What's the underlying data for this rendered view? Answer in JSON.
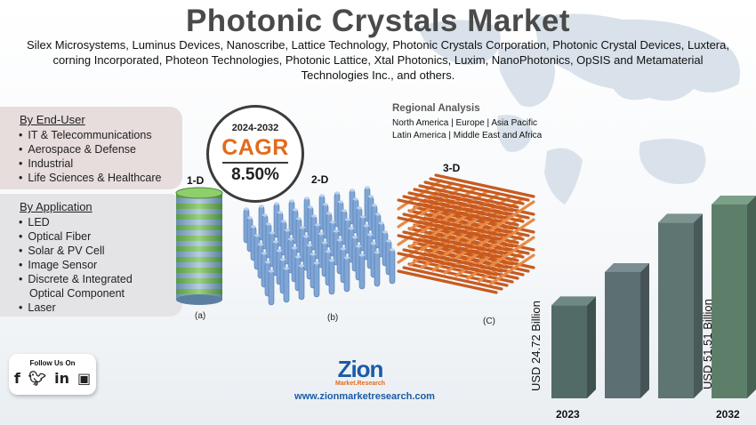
{
  "title": "Photonic Crystals Market",
  "companies": "Silex Microsystems, Luminus Devices, Nanoscribe, Lattice Technology, Photonic Crystals Corporation, Photonic Crystal Devices, Luxtera, corning Incorporated, Photeon Technologies, Photonic Lattice, Xtal Photonics, Luxim, NanoPhotonics, OpSIS and Metamaterial Technologies Inc., and others.",
  "end_user": {
    "heading": "By End-User",
    "items": [
      "IT & Telecommunications",
      "Aerospace & Defense",
      "Industrial",
      "Life Sciences & Healthcare"
    ]
  },
  "application": {
    "heading": "By Application",
    "items": [
      "LED",
      "Optical Fiber",
      "Solar & PV Cell",
      "Image Sensor",
      "Discrete & Integrated",
      "Optical Component",
      "Laser"
    ]
  },
  "cagr": {
    "period": "2024-2032",
    "label": "CAGR",
    "value": "8.50%"
  },
  "crystals": {
    "one_d": "1-D",
    "two_d": "2-D",
    "three_d": "3-D",
    "sub_a": "(a)",
    "sub_b": "(b)",
    "sub_c": "(C)"
  },
  "regional": {
    "title": "Regional Analysis",
    "line1": "North America | Europe | Asia Pacific",
    "line2": "Latin America | Middle East and Africa"
  },
  "social": {
    "label": "Follow Us On",
    "icons": [
      "facebook-icon",
      "twitter-icon",
      "linkedin-icon",
      "instagram-icon"
    ]
  },
  "brand": {
    "logo": "Zion",
    "tagline": "Market.Research",
    "url": "www.zionmarketresearch.com"
  },
  "colors": {
    "accent_orange": "#e36a1d",
    "bar": "#5d7f74",
    "brand_blue": "#1b5ba6"
  },
  "chart_data": {
    "type": "bar",
    "categories": [
      "2023",
      "2032"
    ],
    "values": [
      24.72,
      51.51
    ],
    "value_labels": [
      "USD 24.72 Billion",
      "USD 51.51 Billion"
    ],
    "title": "",
    "xlabel": "",
    "ylabel": ""
  }
}
